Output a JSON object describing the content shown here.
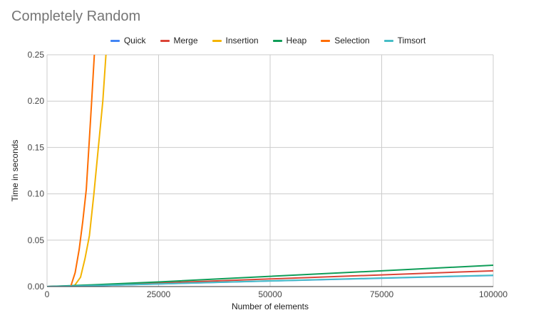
{
  "chart_data": {
    "type": "line",
    "title": "Completely Random",
    "xlabel": "Number of elements",
    "ylabel": "Time in seconds",
    "xlim": [
      0,
      100000
    ],
    "ylim": [
      0,
      0.25
    ],
    "x_ticks": [
      "0",
      "25000",
      "50000",
      "75000",
      "100000"
    ],
    "y_ticks": [
      "0.00",
      "0.05",
      "0.10",
      "0.15",
      "0.20",
      "0.25"
    ],
    "grid": true,
    "legend_position": "top",
    "series": [
      {
        "name": "Quick",
        "color": "#4285F4",
        "points": [
          [
            0,
            0
          ],
          [
            10000,
            0.001
          ],
          [
            25000,
            0.0028
          ],
          [
            50000,
            0.006
          ],
          [
            75000,
            0.009
          ],
          [
            100000,
            0.012
          ]
        ]
      },
      {
        "name": "Merge",
        "color": "#DB4437",
        "points": [
          [
            0,
            0
          ],
          [
            10000,
            0.0014
          ],
          [
            25000,
            0.0038
          ],
          [
            50000,
            0.0082
          ],
          [
            75000,
            0.0126
          ],
          [
            100000,
            0.017
          ]
        ]
      },
      {
        "name": "Insertion",
        "color": "#F4B400",
        "points": [
          [
            0,
            0
          ],
          [
            6000,
            0
          ],
          [
            7500,
            0.01
          ],
          [
            8500,
            0.03
          ],
          [
            9500,
            0.055
          ],
          [
            10500,
            0.1
          ],
          [
            11500,
            0.15
          ],
          [
            12500,
            0.2
          ],
          [
            13200,
            0.25
          ]
        ]
      },
      {
        "name": "Heap",
        "color": "#0F9D58",
        "points": [
          [
            0,
            0
          ],
          [
            10000,
            0.0018
          ],
          [
            25000,
            0.005
          ],
          [
            50000,
            0.011
          ],
          [
            75000,
            0.017
          ],
          [
            100000,
            0.023
          ]
        ]
      },
      {
        "name": "Selection",
        "color": "#FF6D01",
        "points": [
          [
            0,
            0
          ],
          [
            5300,
            0
          ],
          [
            6300,
            0.015
          ],
          [
            7200,
            0.04
          ],
          [
            8000,
            0.07
          ],
          [
            8800,
            0.105
          ],
          [
            9500,
            0.16
          ],
          [
            10000,
            0.2
          ],
          [
            10600,
            0.25
          ]
        ]
      },
      {
        "name": "Timsort",
        "color": "#46BDC6",
        "points": [
          [
            0,
            0
          ],
          [
            10000,
            0.001
          ],
          [
            25000,
            0.0029
          ],
          [
            50000,
            0.0061
          ],
          [
            75000,
            0.0092
          ],
          [
            100000,
            0.0122
          ]
        ]
      }
    ]
  }
}
